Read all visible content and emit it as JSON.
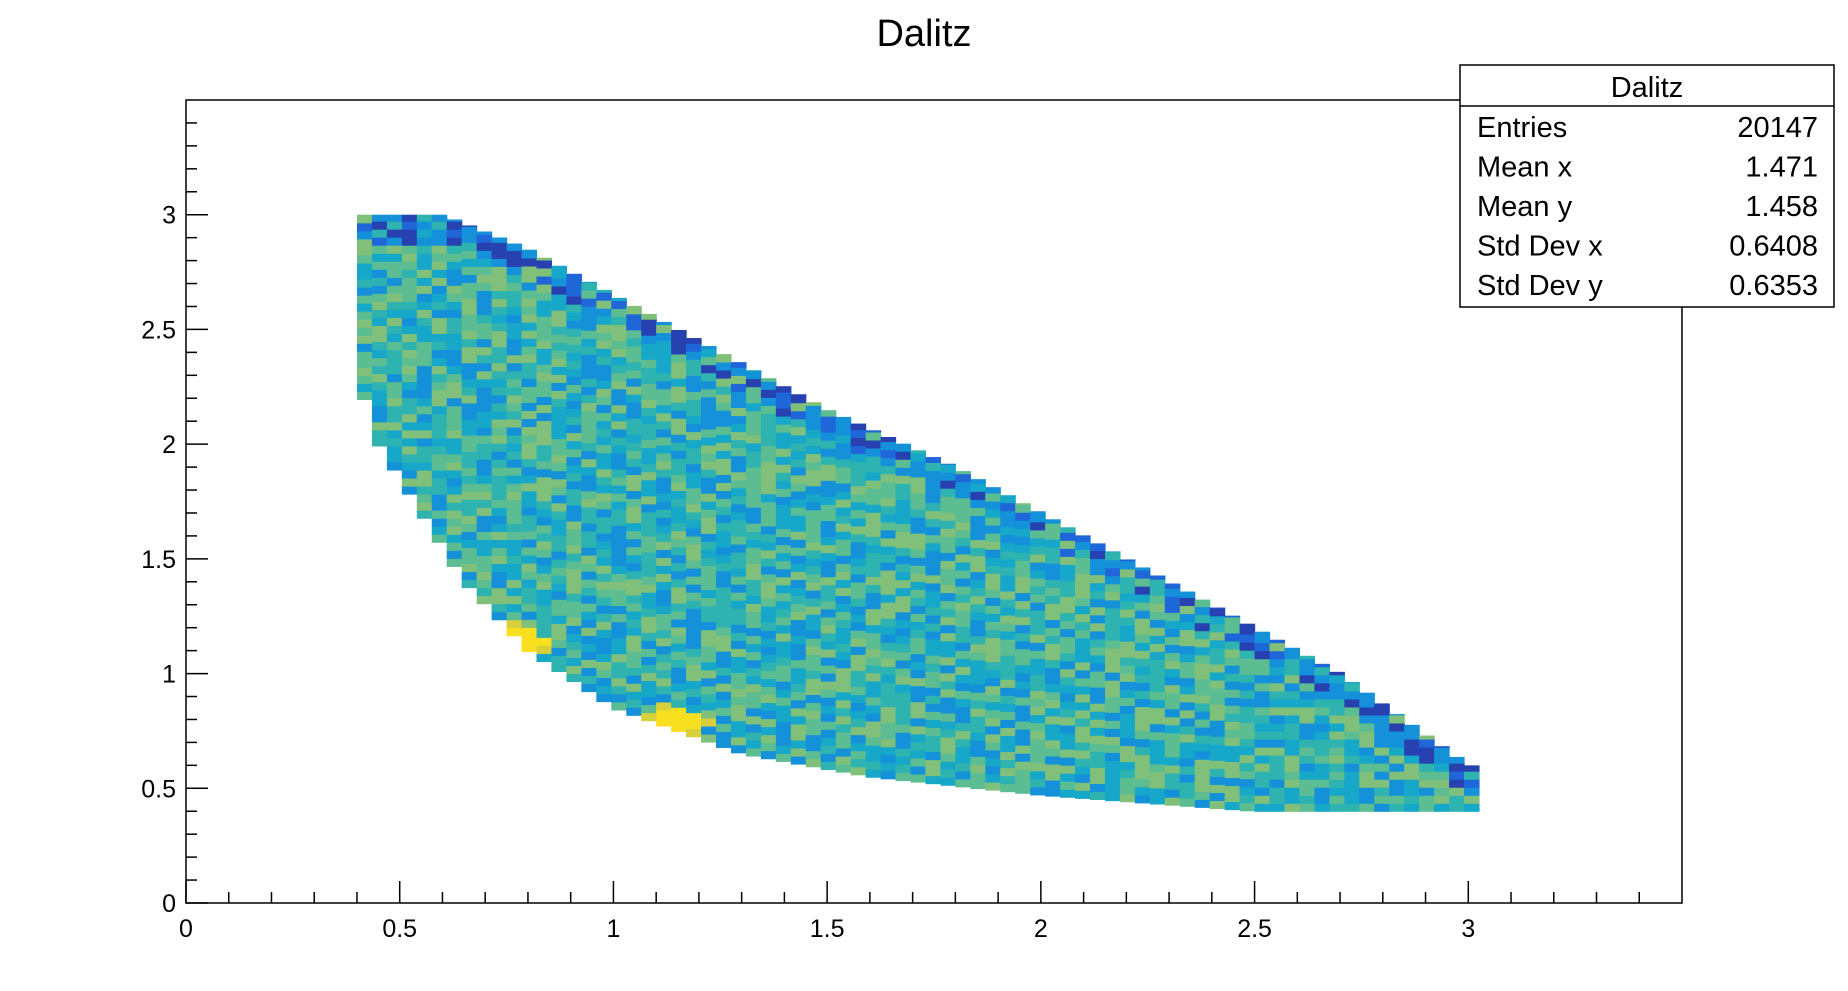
{
  "chart_data": {
    "type": "heatmap",
    "title": "Dalitz",
    "xlabel": "",
    "ylabel": "",
    "xlim": [
      0,
      3.5
    ],
    "ylim": [
      0,
      3.5
    ],
    "x_ticks": [
      "0",
      "0.5",
      "1",
      "1.5",
      "2",
      "2.5",
      "3"
    ],
    "y_ticks": [
      "0",
      "0.5",
      "1",
      "1.5",
      "2",
      "2.5",
      "3"
    ],
    "colormap": "parula",
    "colors": {
      "low": "#2a45b0",
      "mid": "#1aa5c8",
      "high": "#7cbf78",
      "peak": "#f5e020"
    },
    "region": {
      "description": "Dalitz plot allowed region for a three-body decay (filled bins), x from 0.4 to 3.0, y from 0.4 to 3.0",
      "boundary_upper": [
        [
          0.4,
          3.0
        ],
        [
          0.6,
          3.0
        ],
        [
          0.8,
          2.85
        ],
        [
          1.0,
          2.65
        ],
        [
          1.2,
          2.45
        ],
        [
          1.5,
          2.15
        ],
        [
          1.8,
          1.9
        ],
        [
          2.1,
          1.6
        ],
        [
          2.4,
          1.3
        ],
        [
          2.7,
          1.0
        ],
        [
          3.0,
          0.6
        ]
      ],
      "boundary_lower": [
        [
          0.4,
          2.3
        ],
        [
          0.45,
          2.0
        ],
        [
          0.55,
          1.7
        ],
        [
          0.65,
          1.4
        ],
        [
          0.8,
          1.1
        ],
        [
          1.0,
          0.85
        ],
        [
          1.3,
          0.65
        ],
        [
          1.6,
          0.55
        ],
        [
          2.0,
          0.47
        ],
        [
          2.5,
          0.4
        ],
        [
          3.0,
          0.4
        ]
      ],
      "hotspots": [
        [
          0.8,
          1.15
        ],
        [
          1.15,
          0.8
        ]
      ]
    },
    "bin_size": 0.035
  },
  "stats_box": {
    "title": "Dalitz",
    "rows": [
      {
        "label": "Entries",
        "value": "20147"
      },
      {
        "label": "Mean x",
        "value": "1.471"
      },
      {
        "label": "Mean y",
        "value": "1.458"
      },
      {
        "label": "Std Dev x",
        "value": "0.6408"
      },
      {
        "label": "Std Dev y",
        "value": "0.6353"
      }
    ]
  }
}
